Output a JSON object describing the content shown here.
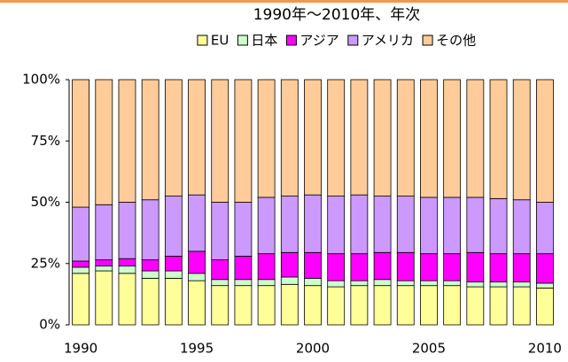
{
  "chart_data": {
    "type": "stacked-bar",
    "title": "1990年～2010年、年次",
    "categories": [
      "1990",
      null,
      null,
      null,
      null,
      "1995",
      null,
      null,
      null,
      null,
      "2000",
      null,
      null,
      null,
      null,
      "2005",
      null,
      null,
      null,
      null,
      "2010"
    ],
    "series": [
      {
        "name": "EU",
        "color": "#ffff99",
        "values": [
          21,
          22,
          21,
          19,
          19,
          18,
          16,
          16,
          16,
          16.5,
          16,
          15.5,
          16,
          16,
          16,
          16,
          16,
          15.5,
          15.5,
          15.5,
          15
        ]
      },
      {
        "name": "日本",
        "color": "#ccffcc",
        "values": [
          2.5,
          2,
          3,
          3,
          3,
          3,
          2.5,
          2.5,
          2.5,
          3,
          3,
          2.5,
          2,
          2.5,
          2,
          2,
          2,
          2,
          2,
          2,
          2
        ]
      },
      {
        "name": "アジア",
        "color": "#ff00ff",
        "values": [
          2.5,
          2.5,
          3,
          4.5,
          6,
          9,
          8,
          9.5,
          10.5,
          10,
          10.5,
          11,
          11,
          11,
          11.5,
          11,
          11,
          12,
          11.5,
          11.5,
          12
        ]
      },
      {
        "name": "アメリカ",
        "color": "#cc99ff",
        "values": [
          22,
          22.5,
          23,
          24.5,
          24.5,
          23,
          23.5,
          22,
          23,
          23,
          23.5,
          23.5,
          24,
          23,
          23,
          23,
          23,
          22.5,
          22.5,
          22,
          21
        ]
      },
      {
        "name": "その他",
        "color": "#ffcc99",
        "values": [
          52,
          51,
          50,
          49,
          47.5,
          47,
          50,
          50,
          48,
          47.5,
          47,
          47.5,
          47,
          47.5,
          47.5,
          48,
          48,
          48,
          48.5,
          49,
          50
        ]
      }
    ],
    "ylim": [
      0,
      100
    ],
    "yticks": [
      {
        "value": 0,
        "label": "0%"
      },
      {
        "value": 25,
        "label": "25%"
      },
      {
        "value": 50,
        "label": "50%"
      },
      {
        "value": 75,
        "label": "75%"
      },
      {
        "value": 100,
        "label": "100%"
      }
    ],
    "grid": false
  }
}
